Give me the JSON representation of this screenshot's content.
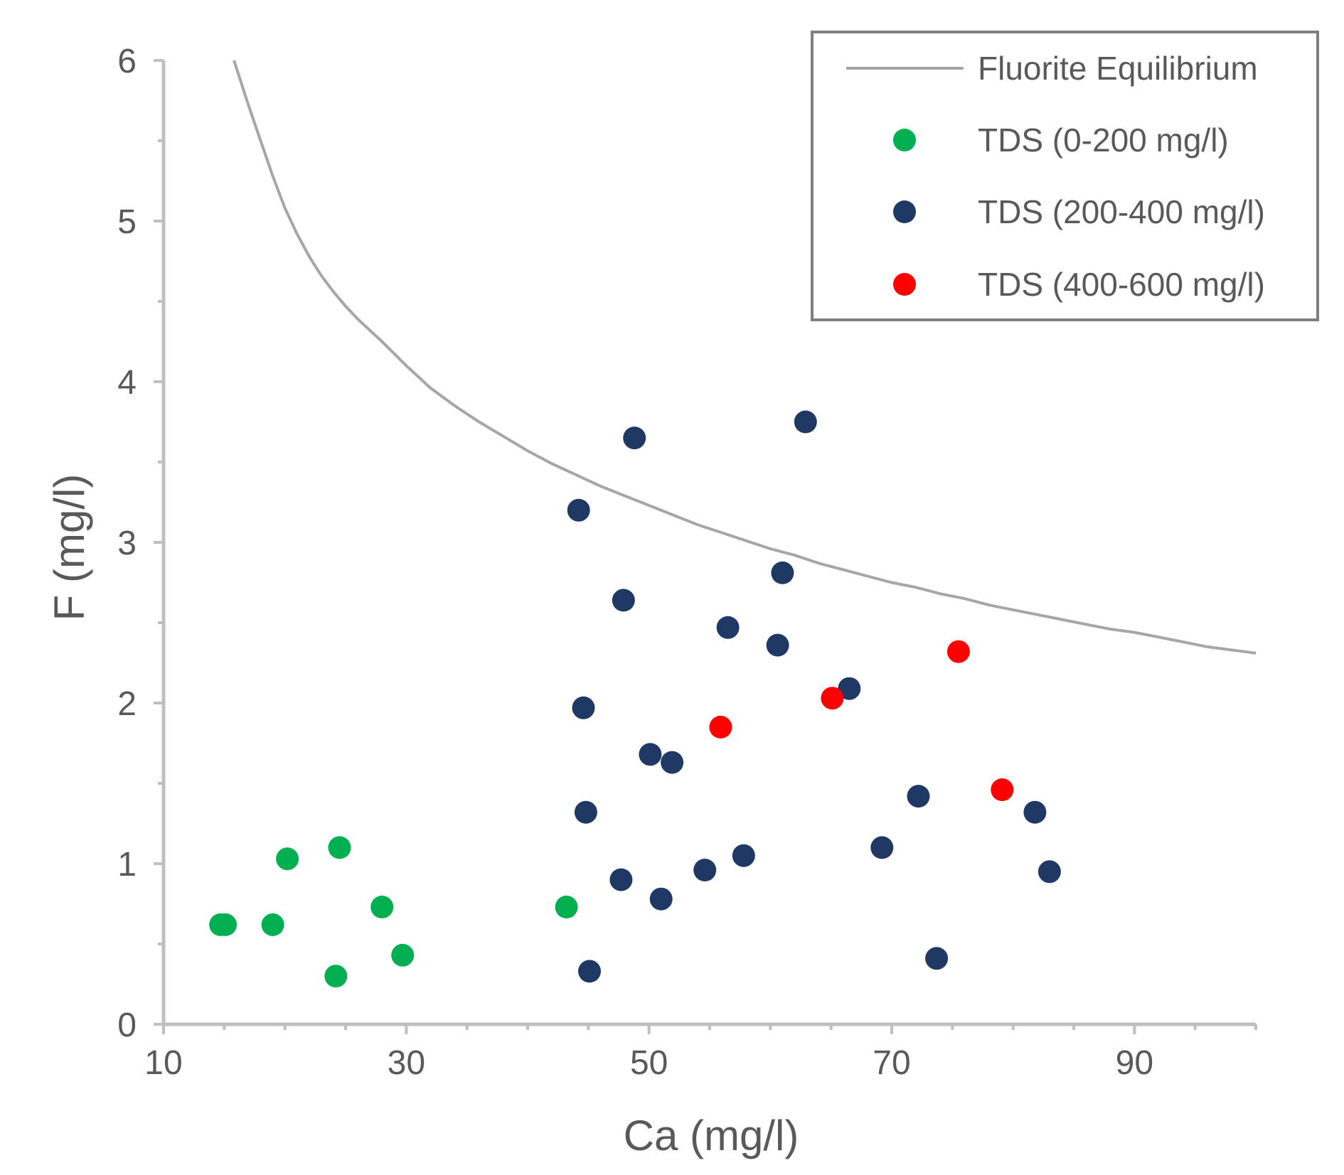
{
  "chart_data": {
    "type": "scatter",
    "title": "",
    "xlabel": "Ca (mg/l)",
    "ylabel": "F (mg/l)",
    "xlim": [
      10,
      100
    ],
    "ylim": [
      0,
      6
    ],
    "x_ticks": [
      10,
      30,
      50,
      70,
      90
    ],
    "y_ticks": [
      0,
      1,
      2,
      3,
      4,
      5,
      6
    ],
    "grid": false,
    "legend_position": "top-right",
    "curve": {
      "name": "Fluorite Equilibrium",
      "color": "#a6a6a6",
      "points": [
        [
          15.8,
          6.0
        ],
        [
          17,
          5.72
        ],
        [
          18,
          5.5
        ],
        [
          19,
          5.28
        ],
        [
          20,
          5.08
        ],
        [
          21,
          4.92
        ],
        [
          22,
          4.78
        ],
        [
          23,
          4.66
        ],
        [
          24,
          4.56
        ],
        [
          25,
          4.47
        ],
        [
          26,
          4.39
        ],
        [
          28,
          4.25
        ],
        [
          30,
          4.1
        ],
        [
          32,
          3.96
        ],
        [
          34,
          3.85
        ],
        [
          36,
          3.75
        ],
        [
          38,
          3.66
        ],
        [
          40,
          3.57
        ],
        [
          42,
          3.49
        ],
        [
          44,
          3.42
        ],
        [
          46,
          3.35
        ],
        [
          48,
          3.29
        ],
        [
          50,
          3.23
        ],
        [
          52,
          3.17
        ],
        [
          54,
          3.11
        ],
        [
          56,
          3.06
        ],
        [
          58,
          3.01
        ],
        [
          60,
          2.96
        ],
        [
          62,
          2.92
        ],
        [
          64,
          2.87
        ],
        [
          66,
          2.83
        ],
        [
          68,
          2.79
        ],
        [
          70,
          2.75
        ],
        [
          72,
          2.72
        ],
        [
          74,
          2.68
        ],
        [
          76,
          2.65
        ],
        [
          78,
          2.61
        ],
        [
          80,
          2.58
        ],
        [
          82,
          2.55
        ],
        [
          84,
          2.52
        ],
        [
          86,
          2.49
        ],
        [
          88,
          2.46
        ],
        [
          90,
          2.44
        ],
        [
          92,
          2.41
        ],
        [
          94,
          2.38
        ],
        [
          96,
          2.35
        ],
        [
          98,
          2.33
        ],
        [
          100,
          2.31
        ]
      ]
    },
    "series": [
      {
        "name": "TDS (0-200 mg/l)",
        "color": "#00b050",
        "points": [
          [
            14.7,
            0.62
          ],
          [
            15.1,
            0.62
          ],
          [
            19.0,
            0.62
          ],
          [
            20.2,
            1.03
          ],
          [
            24.2,
            0.3
          ],
          [
            24.5,
            1.1
          ],
          [
            28.0,
            0.73
          ],
          [
            29.7,
            0.43
          ],
          [
            43.2,
            0.73
          ]
        ]
      },
      {
        "name": "TDS (200-400 mg/l)",
        "color": "#1f3864",
        "points": [
          [
            44.2,
            3.2
          ],
          [
            44.6,
            1.97
          ],
          [
            44.8,
            1.32
          ],
          [
            45.1,
            0.33
          ],
          [
            47.7,
            0.9
          ],
          [
            47.9,
            2.64
          ],
          [
            48.8,
            3.65
          ],
          [
            50.1,
            1.68
          ],
          [
            51.0,
            0.78
          ],
          [
            51.9,
            1.63
          ],
          [
            54.6,
            0.96
          ],
          [
            56.5,
            2.47
          ],
          [
            57.8,
            1.05
          ],
          [
            60.6,
            2.36
          ],
          [
            61.0,
            2.81
          ],
          [
            62.9,
            3.75
          ],
          [
            66.5,
            2.09
          ],
          [
            69.2,
            1.1
          ],
          [
            72.2,
            1.42
          ],
          [
            73.7,
            0.41
          ],
          [
            81.8,
            1.32
          ],
          [
            83.0,
            0.95
          ]
        ]
      },
      {
        "name": "TDS (400-600 mg/l)",
        "color": "#ff0000",
        "points": [
          [
            55.9,
            1.85
          ],
          [
            65.1,
            2.03
          ],
          [
            75.5,
            2.32
          ],
          [
            79.1,
            1.46
          ]
        ]
      }
    ]
  }
}
